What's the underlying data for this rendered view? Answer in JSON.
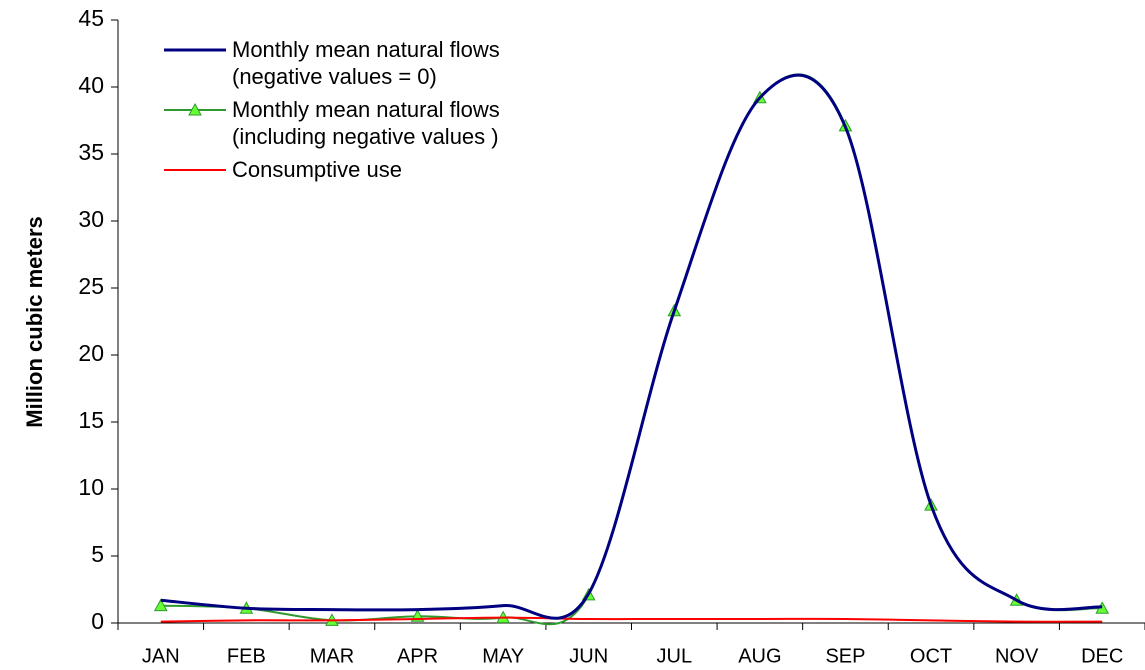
{
  "chart_data": {
    "type": "line",
    "y_label": "Million cubic meters",
    "categories": [
      "JAN",
      "FEB",
      "MAR",
      "APR",
      "MAY",
      "JUN",
      "JUL",
      "AUG",
      "SEP",
      "OCT",
      "NOV",
      "DEC"
    ],
    "series": [
      {
        "name": "Monthly mean natural flows\n(negative values = 0)",
        "color": "#000080",
        "marker": "none",
        "values": [
          1.7,
          1.1,
          1.0,
          1.0,
          1.3,
          2.2,
          23.3,
          39.2,
          37.0,
          8.8,
          1.7,
          1.2
        ]
      },
      {
        "name": "Monthly mean natural flows\n(including negative values )",
        "color": "#2e9a2e",
        "marker": "triangle",
        "marker_color": "#66ff33",
        "values": [
          1.3,
          1.1,
          0.2,
          0.5,
          0.4,
          2.1,
          23.3,
          39.2,
          37.1,
          8.8,
          1.7,
          1.1
        ]
      },
      {
        "name": "Consumptive use",
        "color": "#ff0000",
        "marker": "none",
        "values": [
          0.1,
          0.2,
          0.2,
          0.3,
          0.4,
          0.3,
          0.3,
          0.3,
          0.3,
          0.2,
          0.1,
          0.1
        ]
      }
    ],
    "ylim": [
      0,
      45
    ],
    "yticks": [
      0,
      5,
      10,
      15,
      20,
      25,
      30,
      35,
      40,
      45
    ],
    "grid": false,
    "smooth": true,
    "legend": "top-left"
  }
}
